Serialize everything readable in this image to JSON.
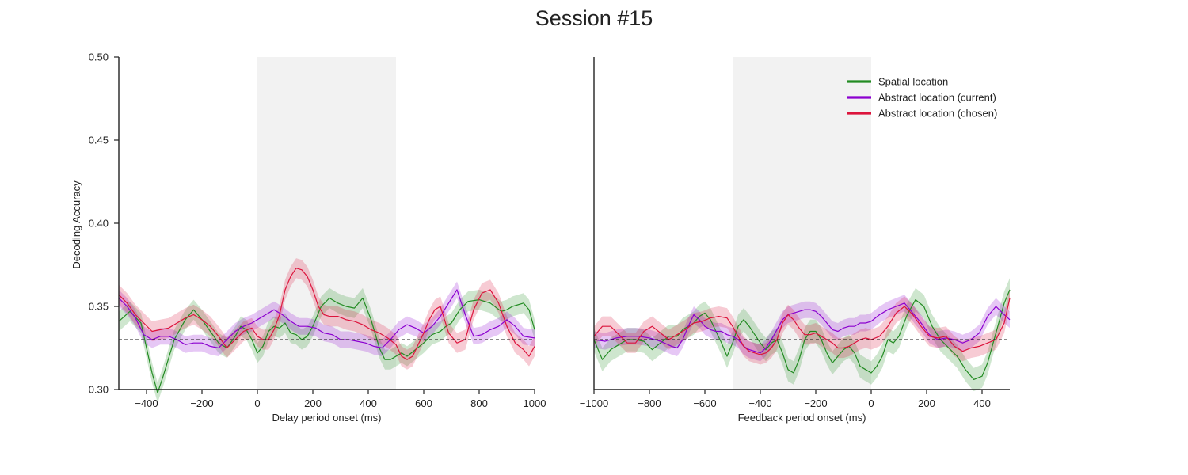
{
  "title": "Session #15",
  "chart_data": [
    {
      "type": "line",
      "xlabel": "Delay period onset (ms)",
      "ylabel": "Decoding Accuracy",
      "xlim": [
        -500,
        1000
      ],
      "ylim": [
        0.3,
        0.5
      ],
      "xticks": [
        -400,
        -200,
        0,
        200,
        400,
        600,
        800,
        1000
      ],
      "xtick_labels": [
        "−400",
        "−200",
        "0",
        "200",
        "400",
        "600",
        "800",
        "1000"
      ],
      "yticks": [
        0.3,
        0.35,
        0.4,
        0.45,
        0.5
      ],
      "ytick_labels": [
        "0.30",
        "0.35",
        "0.40",
        "0.45",
        "0.50"
      ],
      "shaded_region": [
        0,
        500
      ],
      "chance_level": 0.33,
      "series": [
        {
          "name": "Spatial location",
          "color": "#228B22",
          "x": [
            -500,
            -460,
            -420,
            -380,
            -360,
            -340,
            -300,
            -260,
            -230,
            -200,
            -170,
            -140,
            -110,
            -80,
            -60,
            -40,
            -20,
            0,
            20,
            40,
            60,
            80,
            100,
            120,
            140,
            160,
            180,
            200,
            230,
            260,
            290,
            320,
            350,
            380,
            410,
            440,
            460,
            480,
            500,
            520,
            540,
            570,
            600,
            630,
            660,
            680,
            700,
            730,
            760,
            800,
            840,
            880,
            900,
            920,
            960,
            980,
            1000
          ],
          "y": [
            0.341,
            0.347,
            0.34,
            0.31,
            0.298,
            0.308,
            0.33,
            0.342,
            0.348,
            0.342,
            0.335,
            0.328,
            0.325,
            0.332,
            0.338,
            0.336,
            0.33,
            0.322,
            0.326,
            0.335,
            0.338,
            0.337,
            0.34,
            0.334,
            0.333,
            0.33,
            0.332,
            0.338,
            0.35,
            0.355,
            0.352,
            0.35,
            0.349,
            0.355,
            0.342,
            0.325,
            0.318,
            0.318,
            0.32,
            0.322,
            0.32,
            0.324,
            0.328,
            0.333,
            0.335,
            0.338,
            0.34,
            0.348,
            0.353,
            0.354,
            0.352,
            0.347,
            0.348,
            0.35,
            0.352,
            0.348,
            0.336
          ],
          "band": 0.006
        },
        {
          "name": "Abstract location (current)",
          "color": "#8B00D0",
          "x": [
            -500,
            -470,
            -440,
            -410,
            -380,
            -350,
            -320,
            -290,
            -260,
            -230,
            -200,
            -170,
            -140,
            -110,
            -80,
            -50,
            -20,
            0,
            30,
            60,
            90,
            120,
            150,
            180,
            210,
            240,
            270,
            300,
            330,
            360,
            390,
            420,
            450,
            480,
            510,
            540,
            570,
            600,
            630,
            660,
            690,
            720,
            750,
            780,
            810,
            840,
            870,
            900,
            930,
            960,
            1000
          ],
          "y": [
            0.355,
            0.35,
            0.343,
            0.333,
            0.33,
            0.332,
            0.332,
            0.33,
            0.327,
            0.328,
            0.328,
            0.326,
            0.325,
            0.33,
            0.335,
            0.338,
            0.34,
            0.342,
            0.345,
            0.348,
            0.345,
            0.341,
            0.338,
            0.338,
            0.337,
            0.334,
            0.333,
            0.33,
            0.33,
            0.329,
            0.328,
            0.326,
            0.325,
            0.33,
            0.336,
            0.339,
            0.337,
            0.334,
            0.338,
            0.344,
            0.352,
            0.36,
            0.345,
            0.332,
            0.333,
            0.336,
            0.338,
            0.342,
            0.338,
            0.332,
            0.331
          ],
          "band": 0.005
        },
        {
          "name": "Abstract location (chosen)",
          "color": "#DC143C",
          "x": [
            -500,
            -470,
            -440,
            -410,
            -380,
            -350,
            -320,
            -290,
            -260,
            -230,
            -200,
            -170,
            -140,
            -110,
            -80,
            -50,
            -20,
            0,
            20,
            40,
            60,
            80,
            100,
            120,
            140,
            160,
            180,
            200,
            220,
            240,
            260,
            290,
            320,
            350,
            380,
            410,
            440,
            470,
            500,
            520,
            540,
            560,
            580,
            600,
            620,
            640,
            660,
            690,
            720,
            750,
            780,
            810,
            840,
            870,
            900,
            930,
            960,
            980,
            1000
          ],
          "y": [
            0.357,
            0.352,
            0.345,
            0.34,
            0.335,
            0.336,
            0.337,
            0.34,
            0.343,
            0.345,
            0.342,
            0.338,
            0.332,
            0.325,
            0.33,
            0.335,
            0.337,
            0.332,
            0.33,
            0.33,
            0.336,
            0.345,
            0.36,
            0.368,
            0.373,
            0.372,
            0.368,
            0.36,
            0.35,
            0.345,
            0.344,
            0.344,
            0.342,
            0.341,
            0.339,
            0.336,
            0.334,
            0.331,
            0.327,
            0.32,
            0.318,
            0.32,
            0.327,
            0.334,
            0.342,
            0.348,
            0.35,
            0.334,
            0.328,
            0.33,
            0.348,
            0.358,
            0.36,
            0.352,
            0.338,
            0.328,
            0.324,
            0.32,
            0.326
          ],
          "band": 0.006
        }
      ]
    },
    {
      "type": "line",
      "xlabel": "Feedback period onset (ms)",
      "ylabel": "",
      "xlim": [
        -1000,
        500
      ],
      "ylim": [
        0.3,
        0.5
      ],
      "xticks": [
        -1000,
        -800,
        -600,
        -400,
        -200,
        0,
        200,
        400
      ],
      "xtick_labels": [
        "−1000",
        "−800",
        "−600",
        "−400",
        "−200",
        "0",
        "200",
        "400"
      ],
      "yticks": [],
      "ytick_labels": [],
      "shaded_region": [
        -500,
        0
      ],
      "chance_level": 0.33,
      "legend_position": "top-right",
      "series": [
        {
          "name": "Spatial location",
          "color": "#228B22",
          "x": [
            -1000,
            -970,
            -940,
            -910,
            -880,
            -850,
            -820,
            -790,
            -760,
            -730,
            -700,
            -680,
            -660,
            -640,
            -620,
            -600,
            -580,
            -560,
            -540,
            -520,
            -500,
            -480,
            -460,
            -440,
            -420,
            -400,
            -380,
            -360,
            -340,
            -320,
            -300,
            -280,
            -260,
            -240,
            -220,
            -200,
            -180,
            -160,
            -140,
            -120,
            -100,
            -80,
            -60,
            -40,
            -20,
            0,
            20,
            40,
            60,
            80,
            100,
            130,
            160,
            190,
            220,
            250,
            280,
            310,
            340,
            370,
            400,
            420,
            440,
            460,
            480,
            500
          ],
          "y": [
            0.33,
            0.318,
            0.324,
            0.327,
            0.33,
            0.33,
            0.329,
            0.324,
            0.328,
            0.332,
            0.332,
            0.336,
            0.338,
            0.34,
            0.344,
            0.346,
            0.342,
            0.335,
            0.328,
            0.32,
            0.328,
            0.338,
            0.342,
            0.338,
            0.333,
            0.328,
            0.324,
            0.328,
            0.33,
            0.322,
            0.312,
            0.31,
            0.318,
            0.33,
            0.335,
            0.335,
            0.33,
            0.322,
            0.316,
            0.32,
            0.324,
            0.326,
            0.322,
            0.314,
            0.312,
            0.31,
            0.314,
            0.32,
            0.33,
            0.328,
            0.332,
            0.345,
            0.354,
            0.35,
            0.338,
            0.33,
            0.325,
            0.32,
            0.312,
            0.306,
            0.308,
            0.316,
            0.328,
            0.34,
            0.352,
            0.36
          ],
          "band": 0.007
        },
        {
          "name": "Abstract location (current)",
          "color": "#8B00D0",
          "x": [
            -1000,
            -960,
            -920,
            -880,
            -840,
            -800,
            -760,
            -720,
            -700,
            -680,
            -660,
            -640,
            -620,
            -600,
            -580,
            -560,
            -540,
            -520,
            -500,
            -480,
            -460,
            -440,
            -420,
            -400,
            -380,
            -360,
            -340,
            -320,
            -300,
            -280,
            -260,
            -240,
            -220,
            -200,
            -180,
            -160,
            -140,
            -120,
            -100,
            -80,
            -60,
            -40,
            -20,
            0,
            30,
            60,
            90,
            120,
            150,
            180,
            210,
            240,
            270,
            300,
            330,
            360,
            390,
            420,
            450,
            480,
            500
          ],
          "y": [
            0.33,
            0.329,
            0.331,
            0.332,
            0.332,
            0.331,
            0.329,
            0.326,
            0.325,
            0.33,
            0.338,
            0.345,
            0.342,
            0.338,
            0.336,
            0.335,
            0.335,
            0.333,
            0.332,
            0.33,
            0.326,
            0.324,
            0.323,
            0.322,
            0.325,
            0.33,
            0.336,
            0.342,
            0.345,
            0.346,
            0.347,
            0.348,
            0.348,
            0.347,
            0.344,
            0.34,
            0.336,
            0.335,
            0.337,
            0.338,
            0.338,
            0.34,
            0.34,
            0.341,
            0.345,
            0.348,
            0.35,
            0.352,
            0.346,
            0.34,
            0.333,
            0.33,
            0.331,
            0.33,
            0.328,
            0.33,
            0.334,
            0.344,
            0.35,
            0.345,
            0.342
          ],
          "band": 0.005
        },
        {
          "name": "Abstract location (chosen)",
          "color": "#DC143C",
          "x": [
            -1000,
            -970,
            -940,
            -910,
            -880,
            -850,
            -820,
            -790,
            -760,
            -730,
            -700,
            -670,
            -640,
            -610,
            -580,
            -550,
            -520,
            -500,
            -480,
            -460,
            -440,
            -420,
            -400,
            -380,
            -360,
            -340,
            -320,
            -300,
            -280,
            -260,
            -240,
            -220,
            -200,
            -180,
            -160,
            -140,
            -120,
            -100,
            -80,
            -60,
            -40,
            -20,
            0,
            30,
            60,
            90,
            120,
            150,
            180,
            210,
            240,
            270,
            300,
            330,
            360,
            390,
            420,
            450,
            480,
            500
          ],
          "y": [
            0.332,
            0.338,
            0.338,
            0.333,
            0.328,
            0.328,
            0.335,
            0.338,
            0.334,
            0.33,
            0.333,
            0.336,
            0.34,
            0.341,
            0.343,
            0.344,
            0.343,
            0.338,
            0.332,
            0.326,
            0.323,
            0.322,
            0.321,
            0.322,
            0.325,
            0.33,
            0.34,
            0.345,
            0.342,
            0.337,
            0.333,
            0.333,
            0.334,
            0.332,
            0.33,
            0.328,
            0.325,
            0.325,
            0.326,
            0.328,
            0.33,
            0.331,
            0.33,
            0.332,
            0.338,
            0.346,
            0.35,
            0.345,
            0.338,
            0.332,
            0.331,
            0.332,
            0.326,
            0.323,
            0.325,
            0.326,
            0.328,
            0.33,
            0.34,
            0.355
          ],
          "band": 0.006
        }
      ]
    }
  ]
}
